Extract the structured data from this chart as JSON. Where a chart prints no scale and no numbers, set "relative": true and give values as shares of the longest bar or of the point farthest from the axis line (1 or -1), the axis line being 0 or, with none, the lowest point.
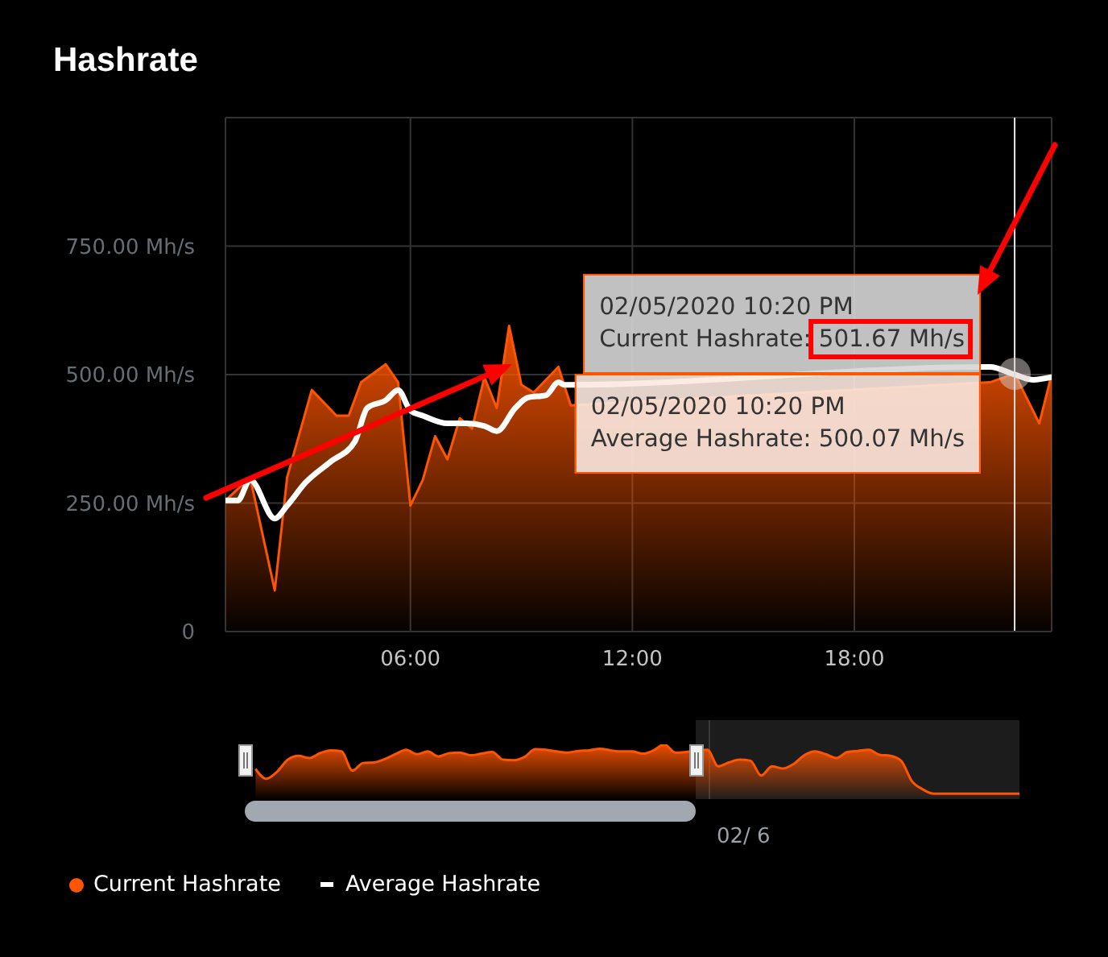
{
  "chart_data": [
    {
      "type": "area",
      "title": "Hashrate",
      "xlim": [
        "2020-02-05T01:00",
        "2020-02-05T23:20"
      ],
      "xticks": [
        {
          "value": "2020-02-05T06:00",
          "label": "06:00"
        },
        {
          "value": "2020-02-05T12:00",
          "label": "12:00"
        },
        {
          "value": "2020-02-05T18:00",
          "label": "18:00"
        }
      ],
      "ylim": [
        0,
        1000
      ],
      "yticks": [
        0,
        {
          "value": 250,
          "label": "250.00 Mh/s"
        },
        {
          "value": 500,
          "label": "500.00 Mh/s"
        },
        {
          "value": 750,
          "label": "750.00 Mh/s"
        },
        {
          "value": 1000,
          "label": null
        }
      ],
      "grid": true,
      "legend": "bottom left",
      "series": [
        {
          "name": "Current Hashrate",
          "color": "#ff5500",
          "x": [
            "2020-02-05T01:00",
            "2020-02-05T01:40",
            "2020-02-05T02:20",
            "2020-02-05T02:40",
            "2020-02-05T03:20",
            "2020-02-05T04:00",
            "2020-02-05T04:20",
            "2020-02-05T04:40",
            "2020-02-05T05:20",
            "2020-02-05T05:40",
            "2020-02-05T06:00",
            "2020-02-05T06:20",
            "2020-02-05T06:40",
            "2020-02-05T07:00",
            "2020-02-05T07:20",
            "2020-02-05T07:40",
            "2020-02-05T08:00",
            "2020-02-05T08:20",
            "2020-02-05T08:40",
            "2020-02-05T09:00",
            "2020-02-05T09:20",
            "2020-02-05T10:00",
            "2020-02-05T10:20",
            "2020-02-05T11:00",
            "2020-02-05T11:20",
            "2020-02-05T11:40",
            "2020-02-05T12:20",
            "2020-02-05T13:00",
            "2020-02-05T13:40",
            "2020-02-05T14:20",
            "2020-02-05T14:40",
            "2020-02-05T15:20",
            "2020-02-05T16:00",
            "2020-02-05T16:20",
            "2020-02-05T17:00",
            "2020-02-05T17:20",
            "2020-02-05T18:00",
            "2020-02-05T18:20",
            "2020-02-05T18:40",
            "2020-02-05T19:00",
            "2020-02-05T19:20",
            "2020-02-05T20:00",
            "2020-02-05T20:40",
            "2020-02-05T21:20",
            "2020-02-05T21:40",
            "2020-02-05T22:20",
            "2020-02-05T23:00",
            "2020-02-05T23:20"
          ],
          "values": [
            255,
            300,
            80,
            300,
            470,
            420,
            420,
            485,
            520,
            485,
            245,
            295,
            380,
            335,
            415,
            395,
            495,
            435,
            595,
            480,
            465,
            515,
            440,
            null,
            null,
            null,
            null,
            null,
            null,
            null,
            null,
            null,
            null,
            null,
            null,
            null,
            null,
            null,
            null,
            null,
            null,
            null,
            null,
            null,
            485,
            501.67,
            405,
            500
          ]
        },
        {
          "name": "Average Hashrate",
          "type": "line",
          "color": "#ffffff",
          "x": [
            "2020-02-05T01:00",
            "2020-02-05T01:20",
            "2020-02-05T01:40",
            "2020-02-05T02:20",
            "2020-02-05T02:40",
            "2020-02-05T03:10",
            "2020-02-05T03:50",
            "2020-02-05T04:30",
            "2020-02-05T04:50",
            "2020-02-05T05:20",
            "2020-02-05T05:40",
            "2020-02-05T06:00",
            "2020-02-05T06:20",
            "2020-02-05T07:00",
            "2020-02-05T07:30",
            "2020-02-05T08:00",
            "2020-02-05T08:20",
            "2020-02-05T08:50",
            "2020-02-05T09:10",
            "2020-02-05T09:40",
            "2020-02-05T10:00",
            "2020-02-05T10:10",
            "2020-02-05T11:40",
            "2020-02-05T13:00",
            "2020-02-05T14:30",
            "2020-02-05T16:00",
            "2020-02-05T17:30",
            "2020-02-05T18:50",
            "2020-02-05T20:20",
            "2020-02-05T21:40",
            "2020-02-05T22:20",
            "2020-02-05T22:50",
            "2020-02-05T23:20"
          ],
          "values": [
            255,
            255,
            295,
            220,
            245,
            290,
            330,
            370,
            435,
            450,
            470,
            430,
            420,
            405,
            405,
            400,
            390,
            435,
            455,
            460,
            485,
            480,
            null,
            null,
            null,
            null,
            null,
            null,
            null,
            515,
            500.07,
            490,
            495
          ]
        }
      ],
      "ref_lines": [
        {
          "axis": "x",
          "value": "2020-02-05T22:20",
          "color": "#e6e6e6"
        }
      ],
      "annotations": [
        {
          "text": "02/05/2020 10:20 PM\nCurrent Hashrate: 501.67 Mh/s",
          "x": "2020-02-05T22:20",
          "y": 501.67
        },
        {
          "text": "02/05/2020 10:20 PM\nAverage Hashrate: 500.07 Mh/s",
          "x": "2020-02-05T22:20",
          "y": 500.07
        }
      ]
    },
    {
      "type": "area",
      "relative": true,
      "color": "#ff5500",
      "categories": [
        null,
        null,
        null,
        null,
        null,
        null,
        null,
        null,
        null,
        null,
        null,
        null,
        null,
        null,
        null,
        null,
        null,
        null,
        null,
        null,
        null,
        null,
        null,
        null,
        null,
        null,
        null,
        null,
        null,
        null,
        null,
        null,
        null,
        null,
        null,
        null,
        null,
        null,
        null,
        null,
        null,
        null,
        null,
        null,
        null,
        null,
        null,
        null,
        null,
        null,
        null,
        null,
        null,
        null,
        null,
        null,
        null,
        null,
        null,
        null,
        null,
        null,
        null,
        null,
        null,
        null,
        null,
        null,
        null,
        null,
        null,
        null,
        null
      ],
      "values": [
        null,
        0.55,
        0.37,
        0.5,
        0.72,
        0.79,
        0.75,
        0.84,
        0.89,
        0.87,
        0.52,
        0.66,
        0.67,
        0.73,
        0.82,
        0.9,
        0.82,
        0.87,
        0.78,
        0.84,
        0.85,
        0.8,
        0.83,
        0.86,
        0.72,
        0.71,
        0.77,
        0.91,
        0.9,
        0.87,
        0.85,
        0.88,
        0.89,
        0.92,
        0.89,
        0.87,
        0.87,
        0.83,
        0.89,
        1,
        0.85,
        0.86,
        null,
        0.9,
        0.6,
        0.67,
        0.72,
        0.7,
        0.43,
        0.6,
        0.56,
        0.64,
        0.8,
        0.87,
        0.82,
        0.75,
        0.86,
        0.88,
        0.9,
        0.81,
        0.79,
        0.7,
        0.33,
        0.18,
        0.1,
        0.1,
        0.1,
        0.1,
        0.1,
        0.1,
        0.1,
        0.1,
        0.1
      ],
      "annotations": [
        "02/ 6"
      ]
    }
  ]
}
